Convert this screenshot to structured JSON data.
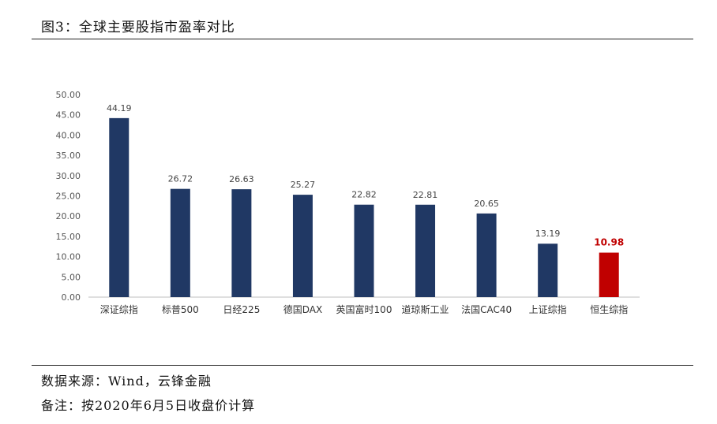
{
  "header": {
    "title": "图3：全球主要股指市盈率对比"
  },
  "footer": {
    "source": "数据来源：Wind，云锋金融",
    "remark": "备注：按2020年6月5日收盘价计算"
  },
  "colors": {
    "bar": "#203864",
    "highlight": "#c00000",
    "axis": "#bfbfbf"
  },
  "chart_data": {
    "type": "bar",
    "title": "图3：全球主要股指市盈率对比",
    "categories": [
      "深证综指",
      "标普500",
      "日经225",
      "德国DAX",
      "英国富时100",
      "道琼斯工业",
      "法国CAC40",
      "上证综指",
      "恒生综指"
    ],
    "values": [
      44.19,
      26.72,
      26.63,
      25.27,
      22.82,
      22.81,
      20.65,
      13.19,
      10.98
    ],
    "labels": [
      "44.19",
      "26.72",
      "26.63",
      "25.27",
      "22.82",
      "22.81",
      "20.65",
      "13.19",
      "10.98"
    ],
    "highlight_index": 8,
    "ylim": [
      0,
      50
    ],
    "yticks": [
      0,
      5,
      10,
      15,
      20,
      25,
      30,
      35,
      40,
      45,
      50
    ],
    "ytick_labels": [
      "0.00",
      "5.00",
      "10.00",
      "15.00",
      "20.00",
      "25.00",
      "30.00",
      "35.00",
      "40.00",
      "45.00",
      "50.00"
    ],
    "grid": false,
    "legend": "none"
  }
}
